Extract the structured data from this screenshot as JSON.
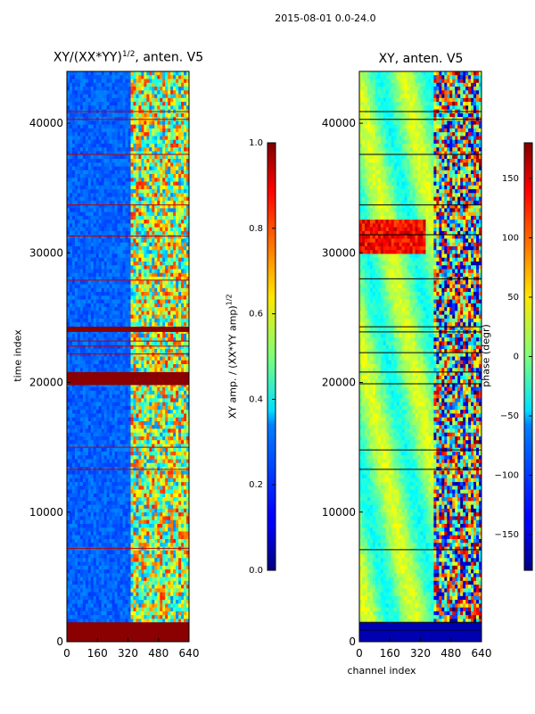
{
  "suptitle": "2015-08-01 0.0-24.0",
  "chart_data": [
    {
      "type": "heatmap",
      "title_prefix": "XY/(XX*YY)",
      "title_exp": "1/2",
      "title_suffix": ", anten. V5",
      "ylabel": "time index",
      "xlabel": "",
      "x_ticks": [
        "0",
        "160",
        "320",
        "480",
        "640"
      ],
      "y_ticks": [
        "0",
        "10000",
        "20000",
        "30000",
        "40000"
      ],
      "xlim": [
        0,
        640
      ],
      "ylim": [
        0,
        44000
      ],
      "colorscale": "jet",
      "colorbar": {
        "label_prefix": "XY amp. / (XX*YY amp)",
        "label_exp": "1/2",
        "range": [
          0.0,
          1.0
        ],
        "ticks": [
          "0.0",
          "0.2",
          "0.4",
          "0.6",
          "0.8",
          "1.0"
        ]
      },
      "saturated_time_bands": [
        [
          0,
          1500
        ],
        [
          19800,
          20800
        ],
        [
          23900,
          24300
        ]
      ],
      "flag_lines": [
        7200,
        13300,
        15000,
        22200,
        22800,
        23200,
        27900,
        31300,
        33700,
        37600,
        40300,
        40900
      ],
      "high_signal_channels": [
        330,
        640
      ]
    },
    {
      "type": "heatmap",
      "title": "XY, anten. V5",
      "ylabel": "",
      "xlabel": "channel index",
      "x_ticks": [
        "0",
        "160",
        "320",
        "480",
        "640"
      ],
      "y_ticks": [
        "0",
        "10000",
        "20000",
        "30000",
        "40000"
      ],
      "xlim": [
        0,
        640
      ],
      "ylim": [
        0,
        44000
      ],
      "colorscale": "jet",
      "colorbar": {
        "label": "phase (degr)",
        "range": [
          -180,
          180
        ],
        "ticks": [
          "−150",
          "−100",
          "−50",
          "0",
          "50",
          "100",
          "150"
        ]
      },
      "flag_lines": [
        900,
        1500,
        7100,
        13300,
        14800,
        19900,
        20800,
        22300,
        23900,
        24300,
        28000,
        31400,
        33700,
        37600,
        40300,
        40900
      ],
      "high_signal_channels": [
        390,
        640
      ]
    }
  ]
}
